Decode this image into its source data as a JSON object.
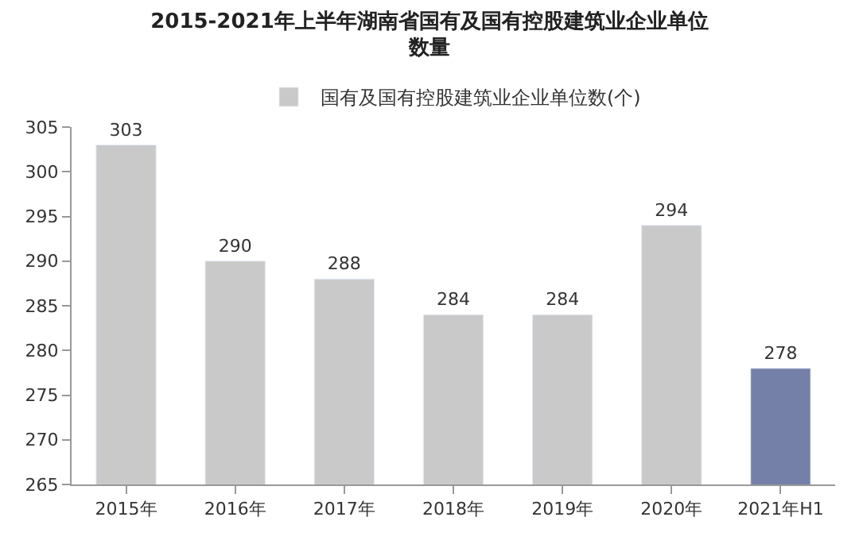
{
  "chart_data": {
    "type": "bar",
    "title": "2015-2021年上半年湖南省国有及国有控股建筑业企业单位数量",
    "categories": [
      "2015年",
      "2016年",
      "2017年",
      "2018年",
      "2019年",
      "2020年",
      "2021年H1"
    ],
    "series": [
      {
        "name": "国有及国有控股建筑业企业单位数(个)",
        "colors": [
          "#c9c9c9",
          "#c9c9c9",
          "#c9c9c9",
          "#c9c9c9",
          "#c9c9c9",
          "#c9c9c9",
          "#7480a8"
        ],
        "values": [
          303,
          290,
          288,
          284,
          284,
          294,
          278
        ]
      }
    ],
    "ylim": [
      265,
      305
    ],
    "yticks": [
      265,
      270,
      275,
      280,
      285,
      290,
      295,
      300,
      305
    ],
    "data_labels": true,
    "legend": "top"
  }
}
